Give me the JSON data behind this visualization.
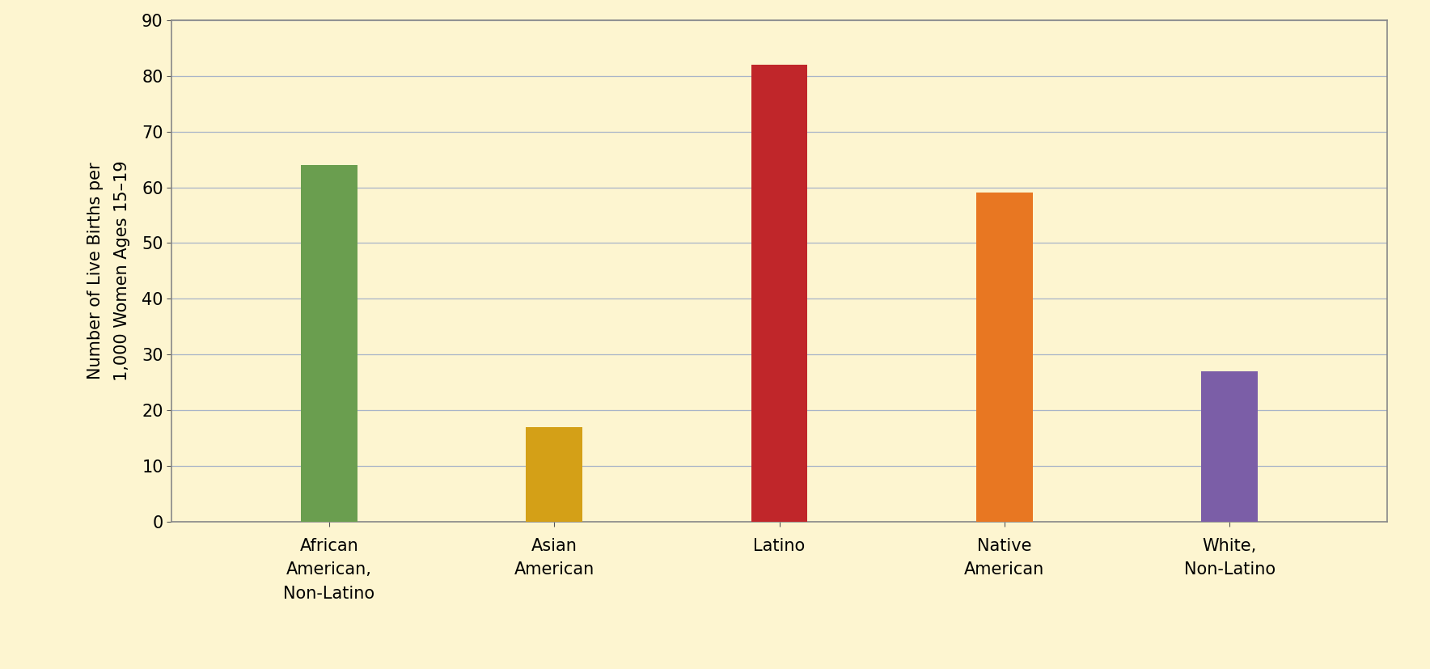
{
  "categories": [
    "African\nAmerican,\nNon-Latino",
    "Asian\nAmerican",
    "Latino",
    "Native\nAmerican",
    "White,\nNon-Latino"
  ],
  "values": [
    64,
    17,
    82,
    59,
    27
  ],
  "bar_colors": [
    "#6a9e4f",
    "#d4a017",
    "#c0262a",
    "#e87722",
    "#7b5ea7"
  ],
  "ylabel": "Number of Live Births per\n1,000 Women Ages 15–19",
  "ylim": [
    0,
    90
  ],
  "yticks": [
    0,
    10,
    20,
    30,
    40,
    50,
    60,
    70,
    80,
    90
  ],
  "background_color": "#fdf5d0",
  "plot_bg_color": "#fdf5d0",
  "grid_color": "#a8b4c8",
  "bar_width": 0.25,
  "axis_fontsize": 15,
  "tick_fontsize": 15,
  "xlabel_fontsize": 15
}
